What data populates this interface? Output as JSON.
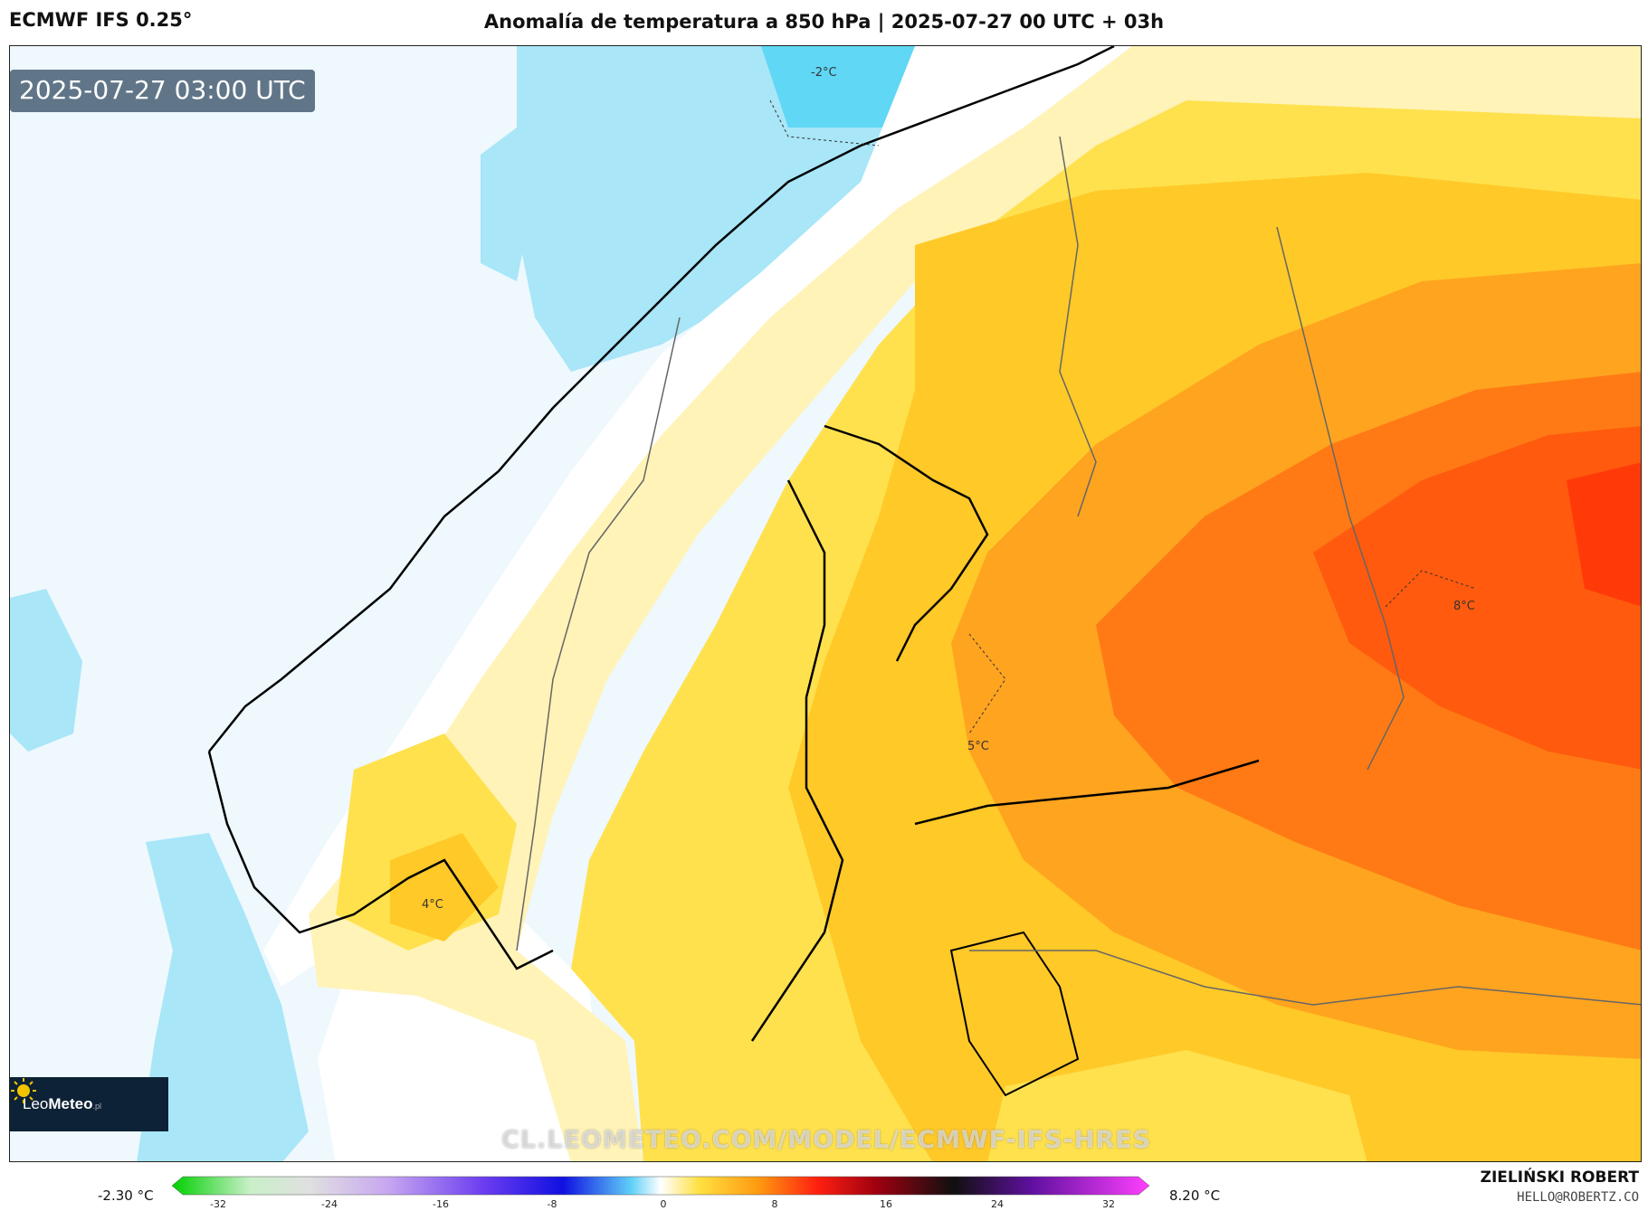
{
  "header": {
    "model": "ECMWF IFS 0.25°",
    "title": "Anomalía de temperatura a 850 hPa | 2025-07-27 00 UTC + 03h"
  },
  "map": {
    "timestamp": "2025-07-27 03:00 UTC",
    "watermark": "CL.LEOMETEO.COM/MODEL/ECMWF-IFS-HRES",
    "isolines": [
      "-2°C",
      "5°C",
      "8°C",
      "4°C"
    ],
    "region": "Scandinavia, Finland, Baltic",
    "colors": {
      "cold_light": "#a8e6f8",
      "cold_strong": "#5fd7f5",
      "neutral": "#ffffff",
      "pale_yellow": "#fff3b8",
      "yellow": "#ffe14d",
      "gold": "#ffc928",
      "orange": "#ffa41f",
      "dark_orange": "#ff7a14",
      "red_orange": "#ff4a0a"
    }
  },
  "logo": {
    "name_a": "Leo",
    "name_b": "Meteo",
    "suffix": ".pl"
  },
  "legend": {
    "min_label": "-2.30 °C",
    "max_label": "8.20 °C",
    "ticks": [
      "-32",
      "-24",
      "-16",
      "-8",
      "0",
      "8",
      "16",
      "24",
      "32"
    ]
  },
  "credits": {
    "author": "ZIELIŃSKI ROBERT",
    "email": "HELLO@ROBERTZ.CO"
  }
}
